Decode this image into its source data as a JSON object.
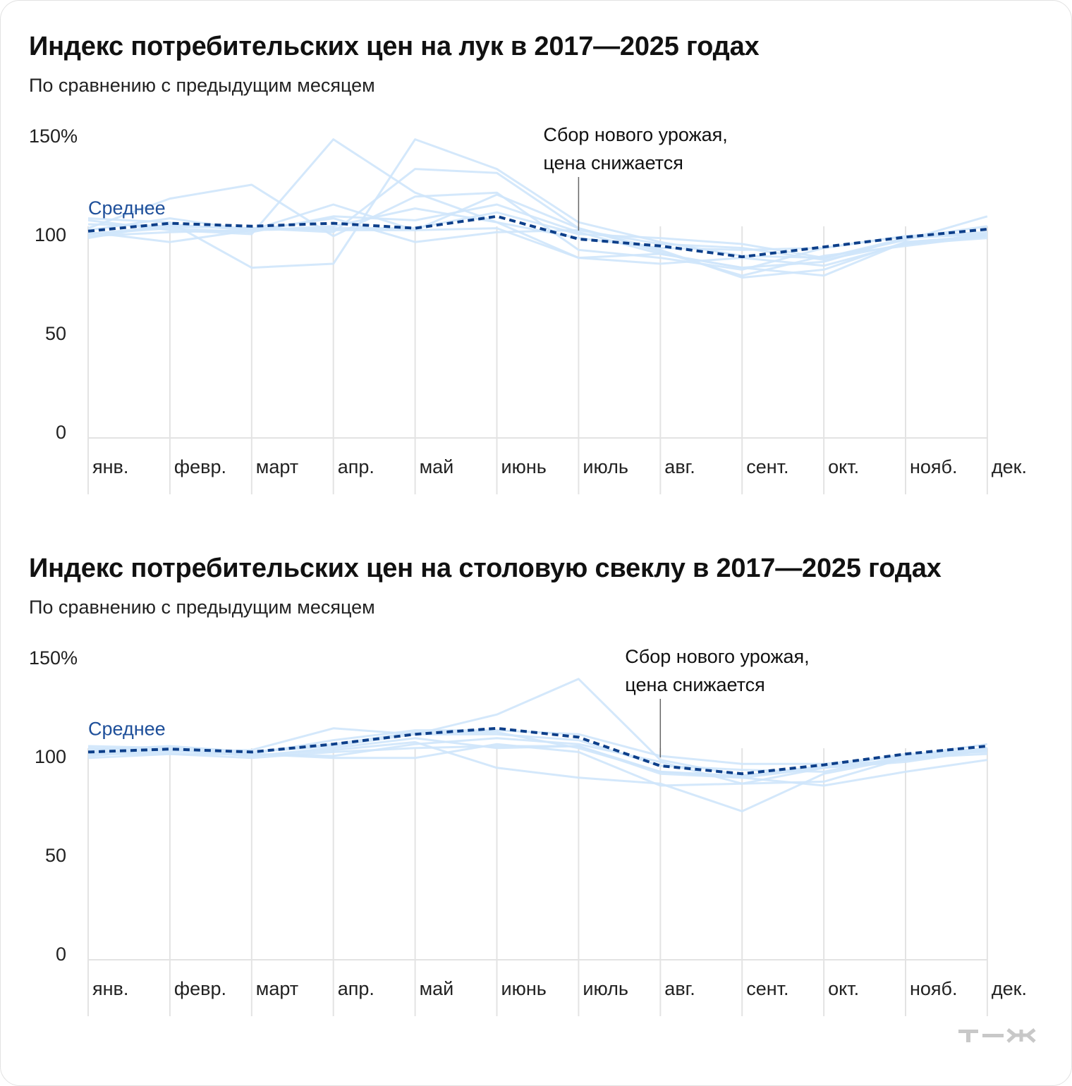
{
  "brand": "Т—Ж",
  "chart_data": [
    {
      "type": "line",
      "title": "Индекс потребительских цен на лук в 2017—2025 годах",
      "subtitle": "По сравнению с предыдущим месяцем",
      "categories": [
        "янв.",
        "февр.",
        "март",
        "апр.",
        "май",
        "июнь",
        "июль",
        "авг.",
        "сент.",
        "окт.",
        "нояб.",
        "дек."
      ],
      "y_ticks": [
        "0",
        "50",
        "100",
        "150%"
      ],
      "ylim": [
        0,
        150
      ],
      "grid": "vertical lines at each month",
      "series": [
        {
          "values": [
            101,
            96,
            102,
            103,
            103,
            111,
            100,
            98,
            95,
            88,
            97,
            109
          ]
        },
        {
          "values": [
            100,
            103,
            101,
            109,
            107,
            115,
            101,
            90,
            83,
            86,
            98,
            104
          ]
        },
        {
          "values": [
            105,
            104,
            103,
            102,
            102,
            103,
            88,
            85,
            88,
            84,
            95,
            100
          ]
        },
        {
          "values": [
            99,
            101,
            102,
            104,
            113,
            106,
            98,
            93,
            92,
            93,
            99,
            101
          ]
        },
        {
          "values": [
            102,
            108,
            102,
            115,
            102,
            120,
            103,
            92,
            78,
            82,
            96,
            99
          ]
        },
        {
          "values": [
            108,
            106,
            83,
            85,
            148,
            133,
            106,
            96,
            89,
            88,
            98,
            100
          ]
        },
        {
          "values": [
            103,
            118,
            125,
            99,
            119,
            121,
            92,
            88,
            82,
            93,
            99,
            100
          ]
        },
        {
          "values": [
            107,
            102,
            100,
            148,
            121,
            106,
            88,
            90,
            83,
            79,
            96,
            99
          ]
        },
        {
          "values": [
            100,
            104,
            103,
            101,
            133,
            131,
            103,
            91,
            79,
            89,
            94,
            99
          ]
        },
        {
          "values": [
            98,
            105,
            102,
            108,
            96,
            101,
            102,
            95,
            93,
            87,
            95,
            98
          ]
        }
      ],
      "average": {
        "name": "Среднее",
        "values": [
          101.5,
          105.5,
          104,
          105.5,
          103,
          109,
          97.5,
          94,
          88.5,
          93.5,
          98.5,
          102.5
        ]
      },
      "annotation": {
        "text": [
          "Сбор нового урожая,",
          "цена снижается"
        ],
        "month": "июль"
      }
    },
    {
      "type": "line",
      "title": "Индекс потребительских цен на столовую свеклу в 2017—2025 годах",
      "subtitle": "По сравнению с предыдущим месяцем",
      "categories": [
        "янв.",
        "февр.",
        "март",
        "апр.",
        "май",
        "июнь",
        "июль",
        "авг.",
        "сент.",
        "окт.",
        "нояб.",
        "дек."
      ],
      "y_ticks": [
        "0",
        "50",
        "100",
        "150%"
      ],
      "ylim": [
        0,
        150
      ],
      "grid": "vertical lines at each month",
      "series": [
        {
          "values": [
            100,
            103,
            101,
            100,
            106,
            109,
            106,
            97,
            86,
            87,
            99,
            101
          ]
        },
        {
          "values": [
            102,
            103,
            101,
            108,
            113,
            113,
            111,
            100,
            96,
            96,
            100,
            104
          ]
        },
        {
          "values": [
            104,
            103,
            100,
            104,
            109,
            104,
            105,
            92,
            90,
            95,
            98,
            103
          ]
        },
        {
          "values": [
            101,
            102,
            103,
            114,
            111,
            121,
            139,
            98,
            90,
            94,
            98,
            103
          ]
        },
        {
          "values": [
            99,
            101,
            101,
            99,
            99,
            106,
            102,
            85,
            86,
            94,
            101,
            102
          ]
        },
        {
          "values": [
            102,
            103,
            100,
            103,
            107,
            94,
            89,
            86,
            72,
            91,
            99,
            104
          ]
        },
        {
          "values": [
            105,
            104,
            102,
            106,
            112,
            112,
            104,
            92,
            89,
            94,
            97,
            103
          ]
        },
        {
          "values": [
            103,
            105,
            102,
            105,
            111,
            111,
            108,
            95,
            93,
            92,
            100,
            106
          ]
        },
        {
          "values": [
            101,
            101,
            99,
            102,
            104,
            105,
            105,
            91,
            89,
            85,
            92,
            98
          ]
        }
      ],
      "average": {
        "name": "Среднее",
        "values": [
          102,
          103.5,
          102,
          106,
          111,
          114,
          109.5,
          95,
          91,
          95.5,
          101,
          105
        ]
      },
      "annotation": {
        "text": [
          "Сбор нового урожая,",
          "цена снижается"
        ],
        "month": "авг."
      }
    }
  ]
}
